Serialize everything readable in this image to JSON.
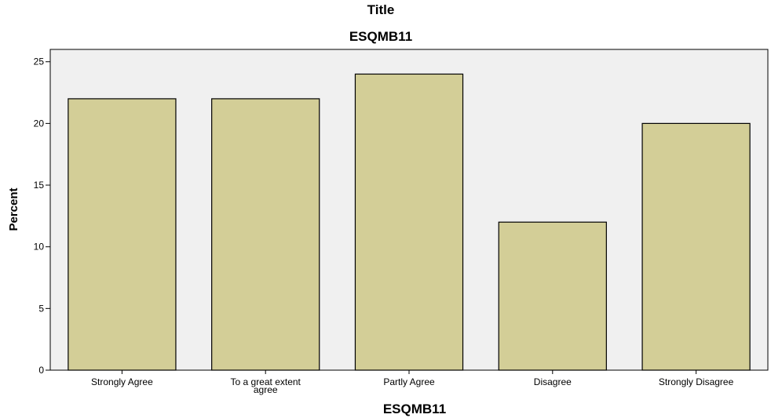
{
  "page": {
    "title": "Title"
  },
  "colors": {
    "plot_background": "#f0f0f0",
    "bar_fill": "#d3ce97",
    "bar_stroke": "#000000"
  },
  "chart_data": {
    "type": "bar",
    "title": "ESQMB11",
    "xlabel": "ESQMB11",
    "ylabel": "Percent",
    "ylim": [
      0,
      26
    ],
    "yticks": [
      0,
      5,
      10,
      15,
      20,
      25
    ],
    "grid": false,
    "categories": [
      [
        "Strongly Agree"
      ],
      [
        "To a great extent",
        "agree"
      ],
      [
        "Partly Agree"
      ],
      [
        "Disagree"
      ],
      [
        "Strongly Disagree"
      ]
    ],
    "values": [
      22,
      22,
      24,
      12,
      20
    ]
  }
}
